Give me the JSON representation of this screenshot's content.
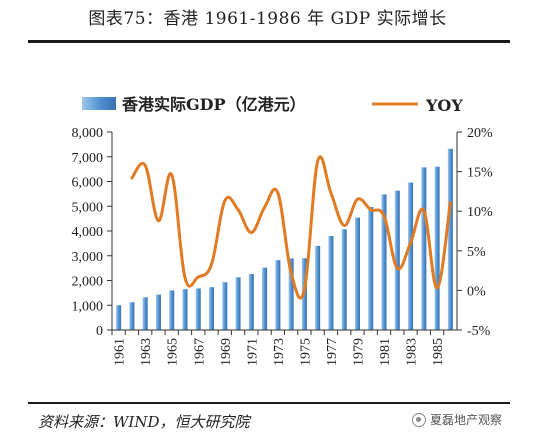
{
  "title": "图表75：香港 1961-1986 年 GDP 实际增长",
  "source": "资料来源：WIND，恒大研究院",
  "watermark": "夏磊地产观察",
  "legend": {
    "bar_label": "香港实际GDP（亿港元）",
    "line_label": "YOY"
  },
  "colors": {
    "bar": "#4f8fcf",
    "line": "#e07b24"
  },
  "chart_data": {
    "type": "bar",
    "categories": [
      "1961",
      "1962",
      "1963",
      "1964",
      "1965",
      "1966",
      "1967",
      "1968",
      "1969",
      "1970",
      "1971",
      "1972",
      "1973",
      "1974",
      "1975",
      "1976",
      "1977",
      "1978",
      "1979",
      "1980",
      "1981",
      "1982",
      "1983",
      "1984",
      "1985",
      "1986"
    ],
    "x_tick_labels": [
      "1961",
      "1963",
      "1965",
      "1967",
      "1969",
      "1971",
      "1973",
      "1975",
      "1977",
      "1979",
      "1981",
      "1983",
      "1985"
    ],
    "series": [
      {
        "name": "香港实际GDP（亿港元）",
        "type": "bar",
        "axis": "left",
        "values": [
          1000,
          1120,
          1320,
          1430,
          1600,
          1650,
          1680,
          1730,
          1930,
          2130,
          2260,
          2520,
          2820,
          2890,
          2900,
          3400,
          3800,
          4070,
          4540,
          4970,
          5480,
          5630,
          5960,
          6570,
          6600,
          7320
        ]
      },
      {
        "name": "YOY",
        "type": "line",
        "axis": "right",
        "values": [
          14.2,
          15.8,
          8.8,
          14.6,
          1.6,
          1.7,
          3.3,
          11.3,
          10.2,
          7.3,
          10.5,
          12.3,
          2.2,
          0.1,
          16.3,
          12.3,
          8.2,
          11.5,
          10.2,
          9.4,
          2.8,
          6.0,
          10.1,
          0.3,
          11.1
        ],
        "x": [
          "1962",
          "1963",
          "1964",
          "1965",
          "1966",
          "1967",
          "1968",
          "1969",
          "1970",
          "1971",
          "1972",
          "1973",
          "1974",
          "1975",
          "1976",
          "1977",
          "1978",
          "1979",
          "1980",
          "1981",
          "1982",
          "1983",
          "1984",
          "1985",
          "1986"
        ]
      }
    ],
    "left_axis": {
      "min": 0,
      "max": 8000,
      "ticks": [
        "0",
        "1,000",
        "2,000",
        "3,000",
        "4,000",
        "5,000",
        "6,000",
        "7,000",
        "8,000"
      ]
    },
    "right_axis": {
      "min": -5,
      "max": 20,
      "ticks": [
        "-5%",
        "0%",
        "5%",
        "10%",
        "15%",
        "20%"
      ]
    },
    "grid": false,
    "legend_position": "top"
  }
}
